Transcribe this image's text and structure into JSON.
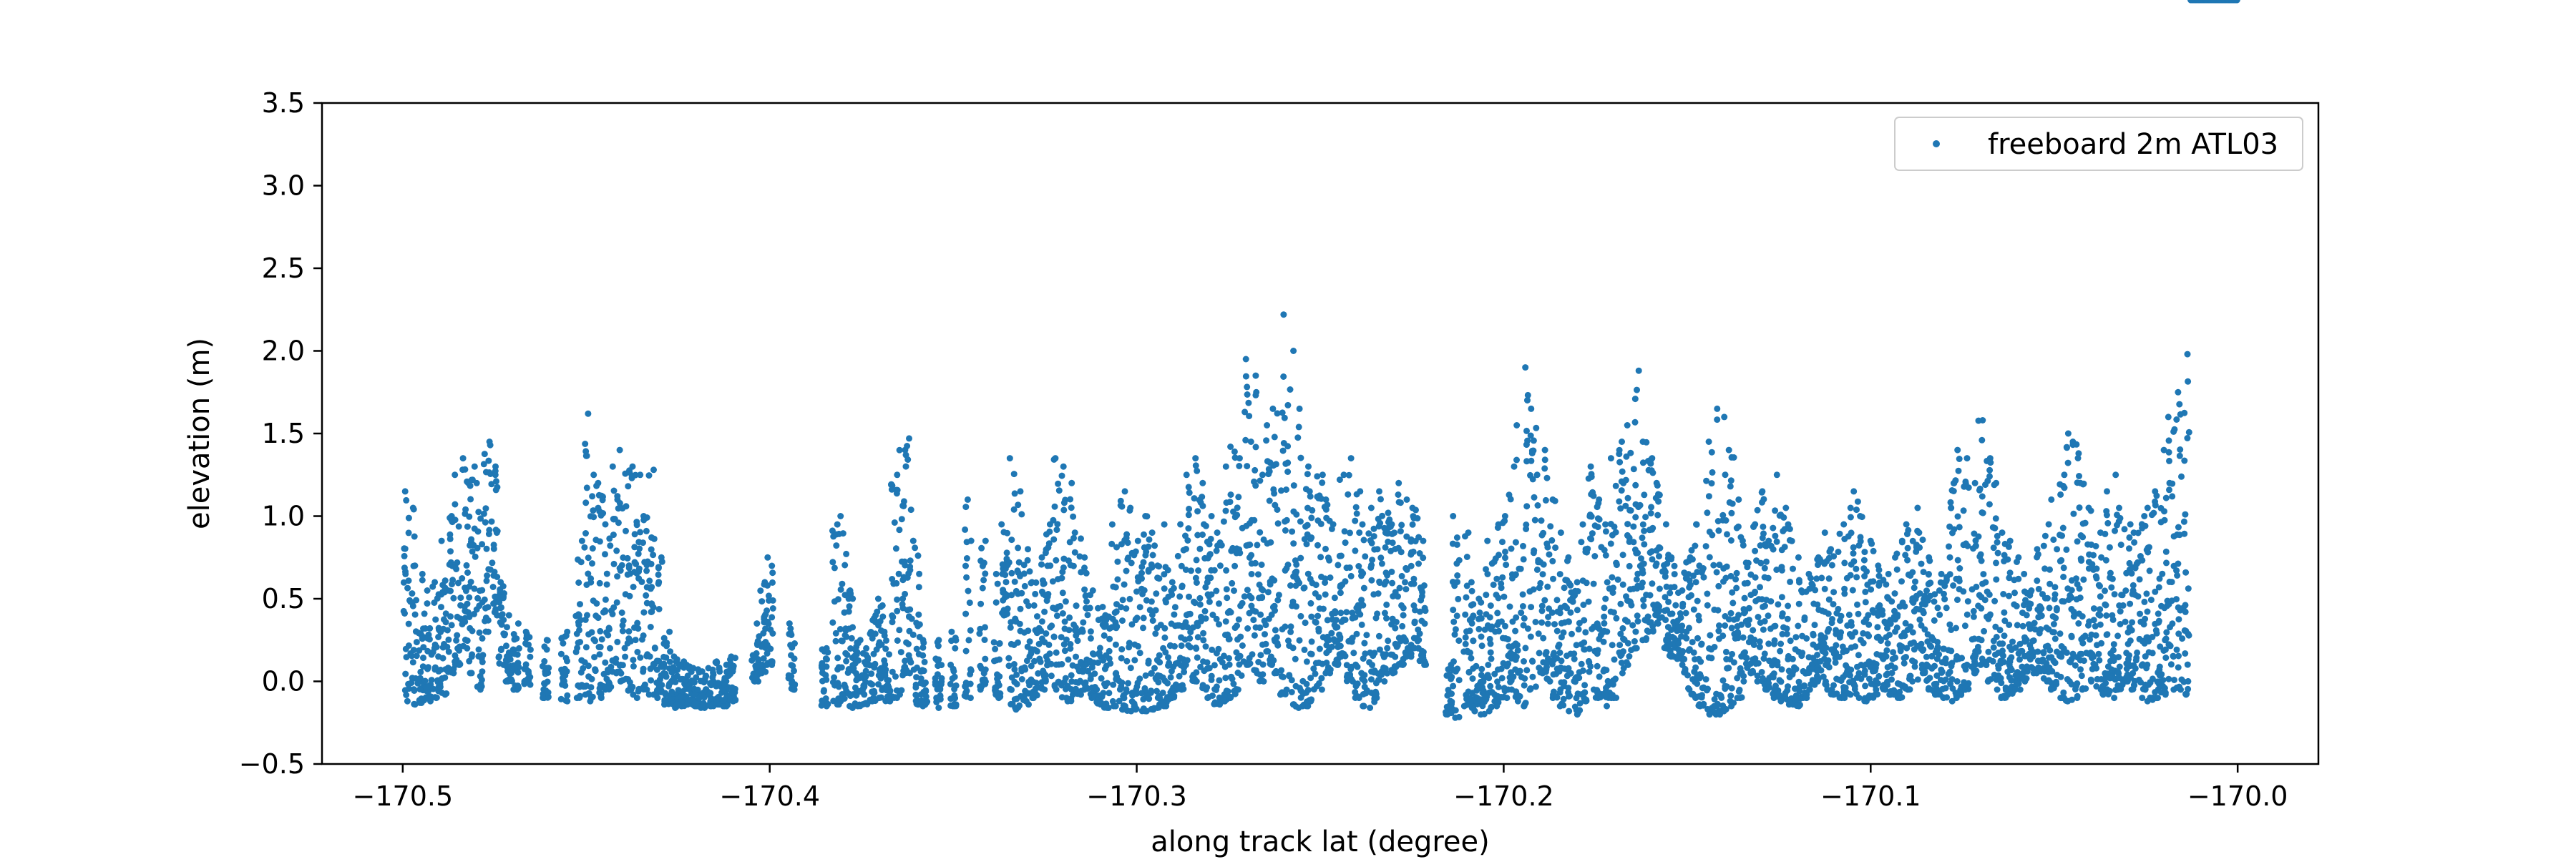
{
  "chart_data": {
    "type": "scatter",
    "xlabel": "along track lat (degree)",
    "ylabel": "elevation (m)",
    "xlim": [
      -170.522,
      -169.978
    ],
    "ylim": [
      -0.5,
      3.5
    ],
    "xticks": [
      -170.5,
      -170.4,
      -170.3,
      -170.2,
      -170.1,
      -170.0
    ],
    "xtick_labels": [
      "−170.5",
      "−170.4",
      "−170.3",
      "−170.2",
      "−170.1",
      "−170.0"
    ],
    "yticks": [
      -0.5,
      0.0,
      0.5,
      1.0,
      1.5,
      2.0,
      2.5,
      3.0,
      3.5
    ],
    "ytick_labels": [
      "−0.5",
      "0.0",
      "0.5",
      "1.0",
      "1.5",
      "2.0",
      "2.5",
      "3.0",
      "3.5"
    ],
    "grid": false,
    "legend_position": "top-right",
    "series": [
      {
        "name": "freeboard 2m ATL03",
        "color": "#1f77b4",
        "x": [
          -170.499,
          -170.497,
          -170.495,
          -170.493,
          -170.491,
          -170.489,
          -170.487,
          -170.485,
          -170.483,
          -170.481,
          -170.479,
          -170.477,
          -170.475,
          -170.473,
          -170.471,
          -170.469,
          -170.466,
          -170.461,
          -170.456,
          -170.452,
          -170.45,
          -170.448,
          -170.446,
          -170.444,
          -170.442,
          -170.44,
          -170.438,
          -170.436,
          -170.434,
          -170.432,
          -170.43,
          -170.428,
          -170.426,
          -170.424,
          -170.422,
          -170.42,
          -170.418,
          -170.416,
          -170.414,
          -170.412,
          -170.41,
          -170.404,
          -170.402,
          -170.4,
          -170.394,
          -170.385,
          -170.382,
          -170.38,
          -170.378,
          -170.376,
          -170.374,
          -170.372,
          -170.37,
          -170.368,
          -170.366,
          -170.364,
          -170.362,
          -170.36,
          -170.358,
          -170.354,
          -170.35,
          -170.346,
          -170.342,
          -170.338,
          -170.336,
          -170.334,
          -170.332,
          -170.33,
          -170.328,
          -170.326,
          -170.324,
          -170.322,
          -170.32,
          -170.318,
          -170.316,
          -170.314,
          -170.312,
          -170.31,
          -170.308,
          -170.306,
          -170.304,
          -170.302,
          -170.3,
          -170.298,
          -170.296,
          -170.294,
          -170.292,
          -170.29,
          -170.288,
          -170.286,
          -170.284,
          -170.282,
          -170.28,
          -170.278,
          -170.276,
          -170.274,
          -170.272,
          -170.27,
          -170.268,
          -170.266,
          -170.264,
          -170.262,
          -170.26,
          -170.258,
          -170.256,
          -170.254,
          -170.252,
          -170.25,
          -170.248,
          -170.246,
          -170.244,
          -170.242,
          -170.24,
          -170.238,
          -170.236,
          -170.234,
          -170.232,
          -170.23,
          -170.228,
          -170.226,
          -170.224,
          -170.222,
          -170.215,
          -170.213,
          -170.21,
          -170.208,
          -170.206,
          -170.204,
          -170.202,
          -170.2,
          -170.198,
          -170.196,
          -170.194,
          -170.192,
          -170.19,
          -170.188,
          -170.186,
          -170.184,
          -170.182,
          -170.18,
          -170.178,
          -170.176,
          -170.174,
          -170.172,
          -170.17,
          -170.168,
          -170.166,
          -170.164,
          -170.162,
          -170.16,
          -170.158,
          -170.156,
          -170.154,
          -170.152,
          -170.15,
          -170.148,
          -170.146,
          -170.144,
          -170.142,
          -170.14,
          -170.138,
          -170.136,
          -170.134,
          -170.132,
          -170.13,
          -170.128,
          -170.126,
          -170.124,
          -170.122,
          -170.12,
          -170.118,
          -170.116,
          -170.114,
          -170.112,
          -170.11,
          -170.108,
          -170.106,
          -170.104,
          -170.102,
          -170.1,
          -170.098,
          -170.096,
          -170.094,
          -170.092,
          -170.09,
          -170.088,
          -170.086,
          -170.084,
          -170.082,
          -170.08,
          -170.078,
          -170.076,
          -170.074,
          -170.072,
          -170.07,
          -170.068,
          -170.066,
          -170.064,
          -170.062,
          -170.06,
          -170.058,
          -170.056,
          -170.054,
          -170.052,
          -170.05,
          -170.048,
          -170.046,
          -170.044,
          -170.042,
          -170.04,
          -170.038,
          -170.036,
          -170.034,
          -170.032,
          -170.03,
          -170.028,
          -170.026,
          -170.024,
          -170.022,
          -170.02,
          -170.018,
          -170.016,
          -170.014,
          -170.012,
          -170.01,
          -170.008,
          -170.006,
          -170.004,
          -170.002,
          -170.001
        ],
        "y_min": [
          -0.12,
          -0.14,
          -0.13,
          -0.12,
          -0.1,
          -0.08,
          0.05,
          0.1,
          0.2,
          0.05,
          -0.05,
          0.3,
          0.4,
          0.1,
          0.0,
          -0.05,
          -0.02,
          -0.1,
          -0.12,
          -0.1,
          -0.08,
          -0.12,
          -0.1,
          -0.05,
          0.05,
          0.0,
          -0.08,
          -0.1,
          -0.05,
          -0.08,
          -0.1,
          -0.14,
          -0.16,
          -0.15,
          -0.14,
          -0.15,
          -0.16,
          -0.15,
          -0.14,
          -0.15,
          -0.12,
          0.0,
          0.05,
          0.1,
          -0.05,
          -0.15,
          -0.14,
          -0.12,
          -0.16,
          -0.15,
          -0.14,
          -0.12,
          -0.1,
          -0.12,
          -0.1,
          -0.08,
          0.05,
          -0.14,
          -0.15,
          -0.16,
          -0.15,
          -0.1,
          -0.05,
          -0.1,
          0.4,
          -0.16,
          -0.17,
          -0.14,
          -0.1,
          -0.05,
          0.0,
          -0.05,
          -0.1,
          -0.12,
          -0.08,
          -0.05,
          -0.1,
          -0.14,
          -0.16,
          -0.15,
          -0.17,
          -0.18,
          -0.17,
          -0.18,
          -0.17,
          -0.16,
          -0.15,
          -0.1,
          -0.05,
          0.1,
          0.0,
          -0.05,
          -0.1,
          -0.14,
          -0.12,
          -0.1,
          -0.05,
          0.1,
          0.05,
          0.0,
          0.1,
          0.05,
          -0.08,
          -0.14,
          -0.16,
          -0.15,
          -0.12,
          -0.05,
          0.05,
          0.1,
          0.15,
          0.0,
          -0.1,
          -0.15,
          -0.16,
          -0.1,
          0.0,
          0.05,
          0.1,
          0.15,
          0.2,
          0.1,
          -0.2,
          -0.22,
          -0.15,
          -0.18,
          -0.2,
          -0.18,
          -0.15,
          -0.1,
          -0.05,
          -0.12,
          -0.15,
          -0.05,
          0.05,
          0.0,
          -0.1,
          -0.15,
          -0.18,
          -0.2,
          -0.12,
          -0.05,
          -0.1,
          -0.15,
          -0.1,
          0.05,
          0.1,
          0.2,
          0.25,
          0.3,
          0.35,
          0.2,
          0.15,
          0.1,
          -0.05,
          -0.1,
          -0.15,
          -0.2,
          -0.2,
          -0.18,
          -0.15,
          -0.1,
          0.0,
          0.05,
          0.0,
          -0.05,
          -0.1,
          -0.12,
          -0.14,
          -0.15,
          -0.1,
          -0.05,
          0.0,
          -0.05,
          -0.08,
          -0.1,
          -0.08,
          -0.1,
          -0.12,
          -0.1,
          -0.08,
          -0.05,
          -0.08,
          -0.1,
          -0.05,
          0.0,
          0.05,
          -0.05,
          -0.08,
          -0.1,
          -0.12,
          -0.1,
          -0.05,
          0.05,
          0.1,
          0.0,
          -0.05,
          -0.1,
          -0.08,
          -0.05,
          0.0,
          0.05,
          0.05,
          0.0,
          -0.05,
          -0.1,
          -0.12,
          -0.1,
          -0.05,
          0.0,
          -0.05,
          -0.08,
          -0.1,
          -0.05,
          0.0,
          -0.05,
          -0.1,
          -0.12,
          -0.1,
          -0.08,
          -0.05,
          -0.05,
          -0.08,
          -0.1,
          -0.05,
          0.05,
          0.1,
          0.2
        ],
        "y_max": [
          1.15,
          1.05,
          0.65,
          0.55,
          0.6,
          0.85,
          1.0,
          1.25,
          1.35,
          1.3,
          1.2,
          1.45,
          1.3,
          0.6,
          0.4,
          0.35,
          0.3,
          0.25,
          0.3,
          0.85,
          1.62,
          1.25,
          1.2,
          0.95,
          1.3,
          1.4,
          1.3,
          1.25,
          1.0,
          1.28,
          0.75,
          0.3,
          0.15,
          0.12,
          0.1,
          0.08,
          0.06,
          0.08,
          0.12,
          0.1,
          0.15,
          0.35,
          0.6,
          0.75,
          0.35,
          0.2,
          0.95,
          1.0,
          0.55,
          0.25,
          0.2,
          0.4,
          0.5,
          0.3,
          1.25,
          1.4,
          1.47,
          0.85,
          0.25,
          0.25,
          0.3,
          1.1,
          0.85,
          0.65,
          0.95,
          1.35,
          1.15,
          0.8,
          0.6,
          0.75,
          0.95,
          1.35,
          1.3,
          1.2,
          0.9,
          0.75,
          0.55,
          0.45,
          0.4,
          0.95,
          1.15,
          1.05,
          0.85,
          1.0,
          0.9,
          0.7,
          0.95,
          0.6,
          0.95,
          1.25,
          1.35,
          1.2,
          1.0,
          0.9,
          1.3,
          1.42,
          1.35,
          1.95,
          1.85,
          1.25,
          1.55,
          1.65,
          2.22,
          2.0,
          1.65,
          1.3,
          1.15,
          1.25,
          1.1,
          0.95,
          1.25,
          1.35,
          1.15,
          0.95,
          1.05,
          1.15,
          1.02,
          0.95,
          1.2,
          1.1,
          1.05,
          0.85,
          0.1,
          1.0,
          0.9,
          0.6,
          0.5,
          0.85,
          0.95,
          1.0,
          1.3,
          1.55,
          1.9,
          1.65,
          1.25,
          1.4,
          1.1,
          0.9,
          0.75,
          0.6,
          0.95,
          1.3,
          1.1,
          0.95,
          1.35,
          1.45,
          1.55,
          1.88,
          1.45,
          1.35,
          1.2,
          0.95,
          0.75,
          0.55,
          0.75,
          0.95,
          0.7,
          1.45,
          1.65,
          1.6,
          1.4,
          1.1,
          0.85,
          0.95,
          1.15,
          0.85,
          1.25,
          1.05,
          0.95,
          0.75,
          0.55,
          0.65,
          0.75,
          0.9,
          0.8,
          0.95,
          1.05,
          1.15,
          1.0,
          0.85,
          0.7,
          0.65,
          0.75,
          0.85,
          0.95,
          1.05,
          0.9,
          0.75,
          0.55,
          0.65,
          1.2,
          1.4,
          1.35,
          1.2,
          1.58,
          1.35,
          1.2,
          0.9,
          0.85,
          0.75,
          0.65,
          0.55,
          0.8,
          0.95,
          1.1,
          1.25,
          1.5,
          1.45,
          1.2,
          1.05,
          0.9,
          1.15,
          1.25,
          1.05,
          0.95,
          0.9,
          1.0,
          1.05,
          1.15,
          1.4,
          1.6,
          1.75,
          1.98
        ]
      }
    ]
  }
}
